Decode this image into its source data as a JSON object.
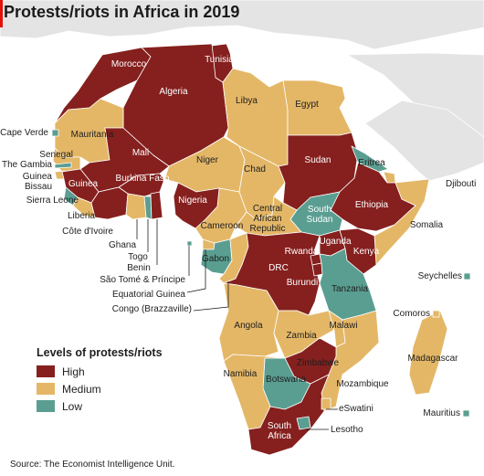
{
  "title": "Protests/riots in Africa in 2019",
  "colors": {
    "high": "#85201e",
    "medium": "#e4b767",
    "low": "#5a9e91",
    "land_outside": "#e4e4e4",
    "sea": "#ffffff",
    "border": "#ffffff"
  },
  "legend": {
    "title": "Levels of protests/riots",
    "items": [
      {
        "key": "high",
        "label": "High"
      },
      {
        "key": "medium",
        "label": "Medium"
      },
      {
        "key": "low",
        "label": "Low"
      }
    ]
  },
  "countries": [
    {
      "name": "Morocco",
      "level": "high"
    },
    {
      "name": "Tunisia",
      "level": "high"
    },
    {
      "name": "Algeria",
      "level": "high"
    },
    {
      "name": "Libya",
      "level": "medium"
    },
    {
      "name": "Egypt",
      "level": "medium"
    },
    {
      "name": "Mauritania",
      "level": "medium"
    },
    {
      "name": "Mali",
      "level": "high"
    },
    {
      "name": "Niger",
      "level": "medium"
    },
    {
      "name": "Chad",
      "level": "medium"
    },
    {
      "name": "Sudan",
      "level": "high"
    },
    {
      "name": "Eritrea",
      "level": "low"
    },
    {
      "name": "Djibouti",
      "level": "medium"
    },
    {
      "name": "Ethiopia",
      "level": "high"
    },
    {
      "name": "Somalia",
      "level": "medium"
    },
    {
      "name": "South Sudan",
      "level": "low"
    },
    {
      "name": "Central African Republic",
      "level": "medium"
    },
    {
      "name": "Cameroon",
      "level": "medium"
    },
    {
      "name": "Nigeria",
      "level": "high"
    },
    {
      "name": "Burkina Faso",
      "level": "high"
    },
    {
      "name": "Senegal",
      "level": "medium"
    },
    {
      "name": "The Gambia",
      "level": "low"
    },
    {
      "name": "Guinea Bissau",
      "level": "medium"
    },
    {
      "name": "Guinea",
      "level": "high"
    },
    {
      "name": "Sierra Leone",
      "level": "low"
    },
    {
      "name": "Liberia",
      "level": "medium"
    },
    {
      "name": "Côte d'Ivoire",
      "level": "high"
    },
    {
      "name": "Ghana",
      "level": "medium"
    },
    {
      "name": "Togo",
      "level": "low"
    },
    {
      "name": "Benin",
      "level": "high"
    },
    {
      "name": "Cape Verde",
      "level": "low"
    },
    {
      "name": "São Tomé & Príncipe",
      "level": "low"
    },
    {
      "name": "Equatorial Guinea",
      "level": "medium"
    },
    {
      "name": "Congo (Brazzaville)",
      "level": "medium"
    },
    {
      "name": "Gabon",
      "level": "low"
    },
    {
      "name": "DRC",
      "level": "high"
    },
    {
      "name": "Uganda",
      "level": "high"
    },
    {
      "name": "Kenya",
      "level": "high"
    },
    {
      "name": "Rwanda",
      "level": "high"
    },
    {
      "name": "Burundi",
      "level": "high"
    },
    {
      "name": "Tanzania",
      "level": "low"
    },
    {
      "name": "Seychelles",
      "level": "low"
    },
    {
      "name": "Comoros",
      "level": "medium"
    },
    {
      "name": "Angola",
      "level": "medium"
    },
    {
      "name": "Zambia",
      "level": "medium"
    },
    {
      "name": "Malawi",
      "level": "medium"
    },
    {
      "name": "Madagascar",
      "level": "medium"
    },
    {
      "name": "Zimbabwe",
      "level": "high"
    },
    {
      "name": "Mozambique",
      "level": "medium"
    },
    {
      "name": "Namibia",
      "level": "medium"
    },
    {
      "name": "Botswana",
      "level": "low"
    },
    {
      "name": "eSwatini",
      "level": "medium"
    },
    {
      "name": "South Africa",
      "level": "high"
    },
    {
      "name": "Lesotho",
      "level": "low"
    },
    {
      "name": "Mauritius",
      "level": "low"
    }
  ],
  "source": "Source: The Economist Intelligence Unit."
}
